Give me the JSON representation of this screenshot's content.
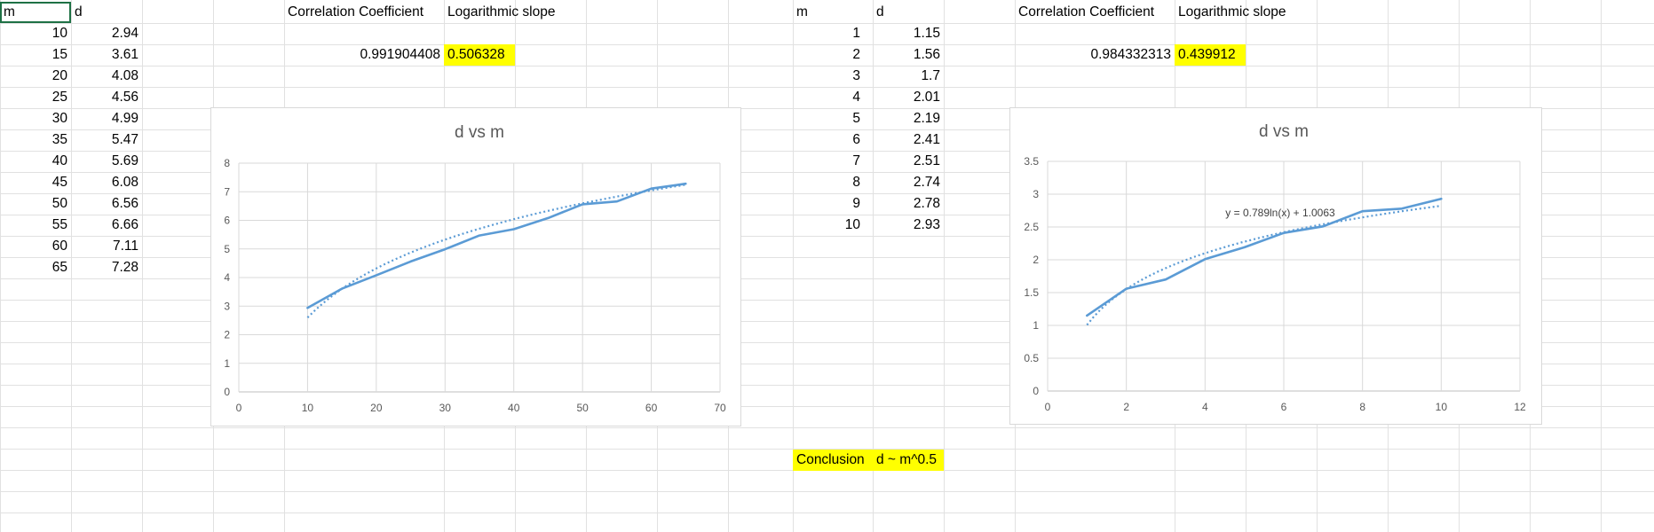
{
  "table1": {
    "header_m": "m",
    "header_d": "d",
    "rows": [
      {
        "m": "10",
        "d": "2.94"
      },
      {
        "m": "15",
        "d": "3.61"
      },
      {
        "m": "20",
        "d": "4.08"
      },
      {
        "m": "25",
        "d": "4.56"
      },
      {
        "m": "30",
        "d": "4.99"
      },
      {
        "m": "35",
        "d": "5.47"
      },
      {
        "m": "40",
        "d": "5.69"
      },
      {
        "m": "45",
        "d": "6.08"
      },
      {
        "m": "50",
        "d": "6.56"
      },
      {
        "m": "55",
        "d": "6.66"
      },
      {
        "m": "60",
        "d": "7.11"
      },
      {
        "m": "65",
        "d": "7.28"
      }
    ],
    "corr_label": "Correlation Coefficient",
    "slope_label": "Logarithmic slope",
    "corr_value": "0.991904408",
    "slope_value": "0.506328"
  },
  "table2": {
    "header_m": "m",
    "header_d": "d",
    "rows": [
      {
        "m": "1",
        "d": "1.15"
      },
      {
        "m": "2",
        "d": "1.56"
      },
      {
        "m": "3",
        "d": "1.7"
      },
      {
        "m": "4",
        "d": "2.01"
      },
      {
        "m": "5",
        "d": "2.19"
      },
      {
        "m": "6",
        "d": "2.41"
      },
      {
        "m": "7",
        "d": "2.51"
      },
      {
        "m": "8",
        "d": "2.74"
      },
      {
        "m": "9",
        "d": "2.78"
      },
      {
        "m": "10",
        "d": "2.93"
      }
    ],
    "corr_label": "Correlation Coefficient",
    "slope_label": "Logarithmic slope",
    "corr_value": "0.984332313",
    "slope_value": "0.439912"
  },
  "conclusion": {
    "label": "Conclusion",
    "value": "d ~ m^0.5"
  },
  "colors": {
    "series": "#5b9bd5",
    "highlight": "#ffff00",
    "grid": "#d9d9d9"
  },
  "chart_data": [
    {
      "type": "line",
      "title": "d vs m",
      "x": [
        10,
        15,
        20,
        25,
        30,
        35,
        40,
        45,
        50,
        55,
        60,
        65
      ],
      "series": [
        {
          "values": [
            2.94,
            3.61,
            4.08,
            4.56,
            4.99,
            5.47,
            5.69,
            6.08,
            6.56,
            6.66,
            7.11,
            7.28
          ]
        }
      ],
      "trendline": {
        "type": "logarithmic",
        "style": "dotted",
        "a": 2.483,
        "b": -3.12
      },
      "xlim": [
        0,
        70
      ],
      "ylim": [
        0,
        8
      ],
      "xticks": [
        0,
        10,
        20,
        30,
        40,
        50,
        60,
        70
      ],
      "yticks": [
        0,
        1,
        2,
        3,
        4,
        5,
        6,
        7,
        8
      ],
      "grid": true
    },
    {
      "type": "line",
      "title": "d vs m",
      "x": [
        1,
        2,
        3,
        4,
        5,
        6,
        7,
        8,
        9,
        10
      ],
      "series": [
        {
          "values": [
            1.15,
            1.56,
            1.7,
            2.01,
            2.19,
            2.41,
            2.51,
            2.74,
            2.78,
            2.93
          ]
        }
      ],
      "trendline": {
        "type": "logarithmic",
        "style": "dotted",
        "a": 0.789,
        "b": 1.0063,
        "equation": "y = 0.789ln(x) + 1.0063"
      },
      "xlim": [
        0,
        12
      ],
      "ylim": [
        0,
        3.5
      ],
      "xticks": [
        0,
        2,
        4,
        6,
        8,
        10,
        12
      ],
      "yticks": [
        0,
        0.5,
        1,
        1.5,
        2,
        2.5,
        3,
        3.5
      ],
      "grid": true
    }
  ]
}
